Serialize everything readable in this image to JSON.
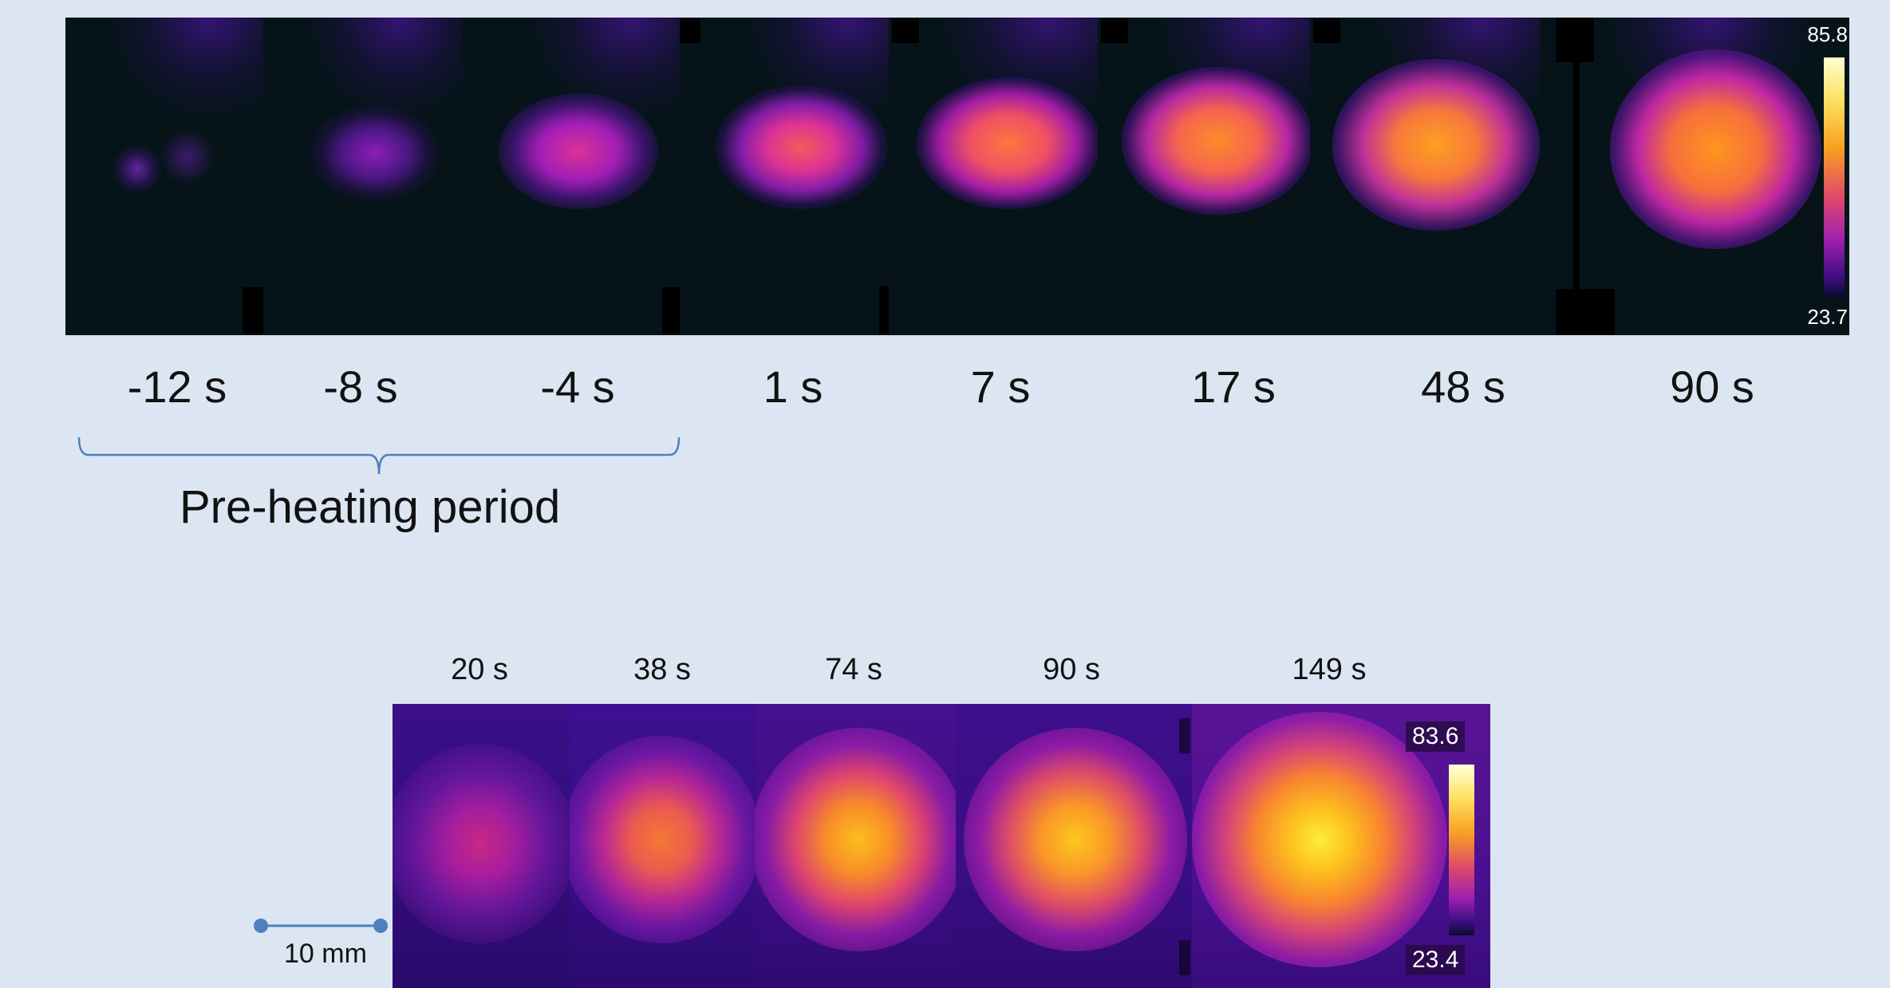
{
  "top_strip": {
    "times": [
      "-12 s",
      "-8 s",
      "-4 s",
      "1 s",
      "7 s",
      "17 s",
      "48 s",
      "90 s"
    ],
    "colorbar": {
      "max": "85.8",
      "min": "23.7"
    },
    "preheat_label": "Pre-heating period"
  },
  "bottom_strip": {
    "times": [
      "20 s",
      "38 s",
      "74 s",
      "90 s",
      "149 s"
    ],
    "colorbar": {
      "max": "83.6",
      "min": "23.4"
    }
  },
  "scale_bar": {
    "label": "10 mm"
  },
  "colors": {
    "background": "#dce6f2",
    "top_image_bg": "#06141a",
    "bottom_image_bg": "#2a0b6e",
    "brace": "#4f7fbf",
    "scale_bar": "#4f7fbf"
  }
}
